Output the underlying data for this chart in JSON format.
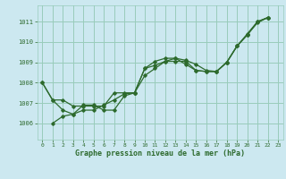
{
  "title": "Graphe pression niveau de la mer (hPa)",
  "bg_color": "#cce8f0",
  "grid_color": "#99ccbb",
  "line_color": "#2d6a2d",
  "xlim": [
    -0.5,
    23.5
  ],
  "ylim": [
    1005.2,
    1011.8
  ],
  "yticks": [
    1006,
    1007,
    1008,
    1009,
    1010,
    1011
  ],
  "xticks": [
    0,
    1,
    2,
    3,
    4,
    5,
    6,
    7,
    8,
    9,
    10,
    11,
    12,
    13,
    14,
    15,
    16,
    17,
    18,
    19,
    20,
    21,
    22,
    23
  ],
  "series": [
    {
      "x": [
        0,
        1,
        2,
        3,
        4,
        5,
        6,
        7,
        8,
        9,
        10,
        11,
        12,
        13,
        14,
        15,
        16,
        17,
        18,
        19,
        20,
        21,
        22,
        23
      ],
      "y": [
        1008.0,
        1007.15,
        1007.15,
        1006.85,
        1006.85,
        1006.85,
        1006.85,
        1007.5,
        1007.5,
        1007.5,
        1008.7,
        1008.85,
        1009.05,
        1009.2,
        1009.1,
        1008.9,
        1008.6,
        1008.55,
        1009.0,
        1009.8,
        1010.4,
        1011.0,
        1011.2,
        null
      ]
    },
    {
      "x": [
        0,
        1,
        2,
        3,
        4,
        5,
        6,
        7,
        8,
        9,
        10,
        11,
        12,
        13,
        14,
        15,
        16,
        17,
        18,
        19,
        20,
        21,
        22,
        23
      ],
      "y": [
        1008.0,
        1007.15,
        1006.65,
        1006.45,
        1006.65,
        1006.65,
        1006.9,
        1007.15,
        1007.45,
        1007.5,
        1008.35,
        1008.7,
        1009.05,
        1009.05,
        1009.05,
        1008.6,
        1008.55,
        1008.55,
        1009.0,
        1009.8,
        1010.35,
        1011.0,
        1011.2,
        null
      ]
    },
    {
      "x": [
        1,
        2,
        3,
        4,
        5,
        6,
        7,
        8,
        9,
        10,
        11,
        12,
        13,
        14,
        15,
        16,
        17,
        18,
        19,
        20,
        21,
        22,
        23
      ],
      "y": [
        1006.0,
        1006.35,
        1006.45,
        1006.9,
        1006.9,
        1006.65,
        1006.65,
        1007.35,
        1007.5,
        1008.7,
        1009.05,
        1009.2,
        1009.2,
        1008.9,
        1008.6,
        1008.55,
        1008.55,
        1009.0,
        1009.8,
        1010.35,
        1010.95,
        1011.2,
        null
      ]
    }
  ]
}
